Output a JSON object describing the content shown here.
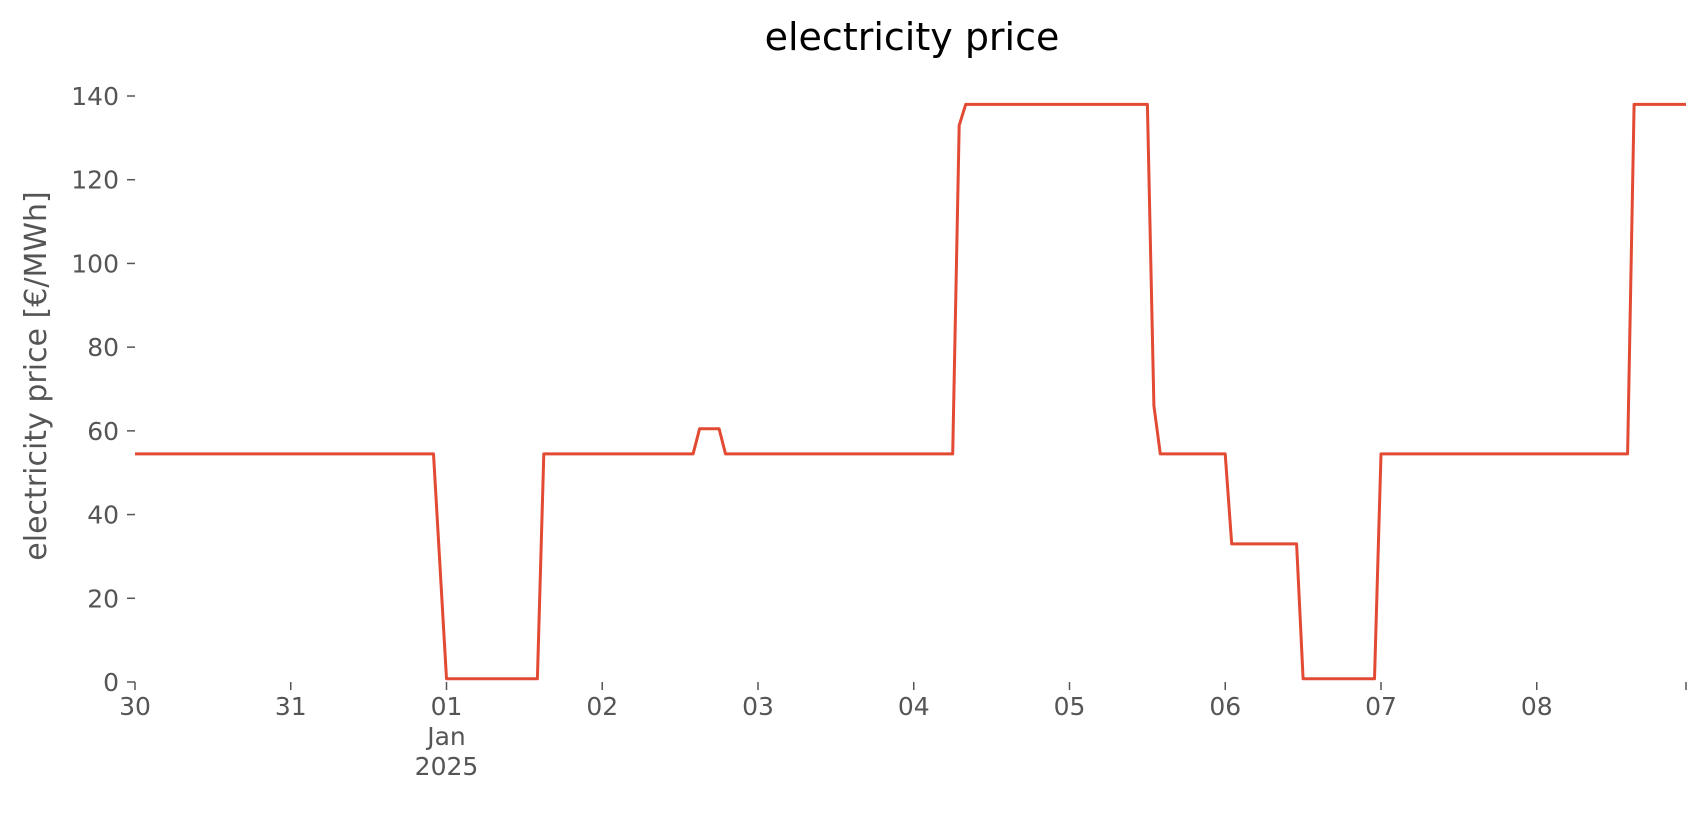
{
  "chart_data": {
    "type": "line",
    "title": "electricity price",
    "xlabel": "",
    "ylabel": "electricity price [€/MWh]",
    "grid": false,
    "line_color": "#E24A33",
    "text_color": "#555555",
    "ylim": [
      0,
      140
    ],
    "xlim": [
      "2024-12-30",
      "2025-01-08 23:00"
    ],
    "yticks": [
      "0",
      "20",
      "40",
      "60",
      "80",
      "100",
      "120",
      "140"
    ],
    "xticks": [
      {
        "date": "2024-12-30",
        "lines": [
          "30"
        ]
      },
      {
        "date": "2024-12-31",
        "lines": [
          "31"
        ]
      },
      {
        "date": "2025-01-01",
        "lines": [
          "01",
          "Jan",
          "2025"
        ]
      },
      {
        "date": "2025-01-02",
        "lines": [
          "02"
        ]
      },
      {
        "date": "2025-01-03",
        "lines": [
          "03"
        ]
      },
      {
        "date": "2025-01-04",
        "lines": [
          "04"
        ]
      },
      {
        "date": "2025-01-05",
        "lines": [
          "05"
        ]
      },
      {
        "date": "2025-01-06",
        "lines": [
          "06"
        ]
      },
      {
        "date": "2025-01-07",
        "lines": [
          "07"
        ]
      },
      {
        "date": "2025-01-08",
        "lines": [
          "08"
        ]
      }
    ],
    "series": [
      {
        "x": [
          "2024-12-30 00:00",
          "2024-12-31 22:00",
          "2025-01-01 00:00",
          "2025-01-01 14:00",
          "2025-01-01 15:00",
          "2025-01-02 14:00",
          "2025-01-02 15:00",
          "2025-01-02 18:00",
          "2025-01-02 19:00",
          "2025-01-04 06:00",
          "2025-01-04 07:00",
          "2025-01-04 08:00",
          "2025-01-05 12:00",
          "2025-01-05 13:00",
          "2025-01-05 14:00",
          "2025-01-06 00:00",
          "2025-01-06 01:00",
          "2025-01-06 11:00",
          "2025-01-06 12:00",
          "2025-01-06 21:00",
          "2025-01-06 22:00",
          "2025-01-06 23:00",
          "2025-01-07 00:00",
          "2025-01-08 14:00",
          "2025-01-08 15:00",
          "2025-01-08 23:00"
        ],
        "y": [
          54.5,
          54.5,
          0.8,
          0.8,
          54.5,
          54.5,
          60.5,
          60.5,
          54.5,
          54.5,
          133,
          138,
          138,
          66,
          54.5,
          54.5,
          33,
          33,
          0.8,
          0.8,
          0.8,
          0.8,
          54.5,
          54.5,
          138,
          138
        ]
      }
    ]
  }
}
